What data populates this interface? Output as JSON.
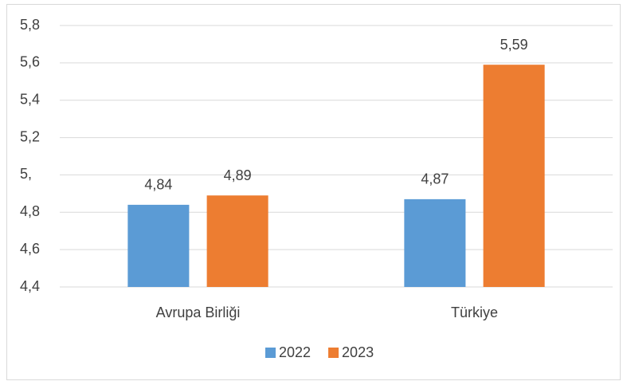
{
  "chart_data": {
    "type": "bar",
    "categories": [
      "Avrupa Birliği",
      "Türkiye"
    ],
    "series": [
      {
        "name": "2022",
        "color": "#5b9bd5",
        "values": [
          4.84,
          4.87
        ],
        "value_labels": [
          "4,84",
          "4,87"
        ]
      },
      {
        "name": "2023",
        "color": "#ed7d31",
        "values": [
          4.89,
          5.59
        ],
        "value_labels": [
          "4,89",
          "5,59"
        ]
      }
    ],
    "ylim": [
      4.4,
      5.8
    ],
    "yticks": [
      {
        "value": 4.4,
        "label": "4,4"
      },
      {
        "value": 4.6,
        "label": "4,6"
      },
      {
        "value": 4.8,
        "label": "4,8"
      },
      {
        "value": 5,
        "label": "5,"
      },
      {
        "value": 5.2,
        "label": "5,2"
      },
      {
        "value": 5.4,
        "label": "5,4"
      },
      {
        "value": 5.6,
        "label": "5,6"
      },
      {
        "value": 5.8,
        "label": "5,8"
      }
    ],
    "grid": true,
    "legend": "bottom"
  }
}
